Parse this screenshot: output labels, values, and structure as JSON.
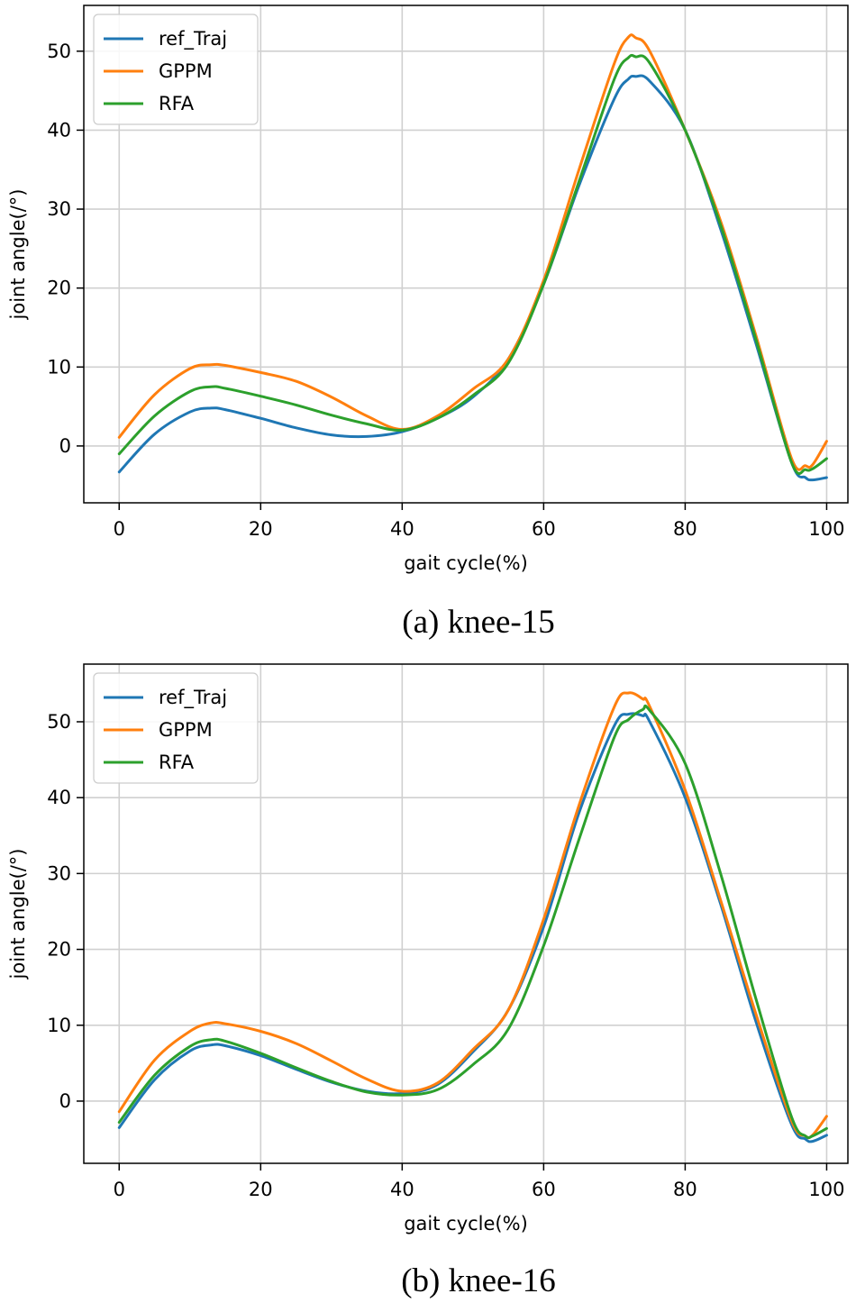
{
  "figure": {
    "colors": {
      "ref_Traj": "#1f77b4",
      "GPPM": "#ff7f0e",
      "RFA": "#2ca02c",
      "grid": "#d0d0d0",
      "axes": "#000000"
    }
  },
  "chart_data": [
    {
      "type": "line",
      "caption": "(a) knee-15",
      "xlabel": "gait cycle(%)",
      "ylabel": "joint angle(/°)",
      "xlim": [
        -5,
        103
      ],
      "ylim": [
        -7.2,
        55.8
      ],
      "xticks": [
        0,
        20,
        40,
        60,
        80,
        100
      ],
      "yticks": [
        0,
        10,
        20,
        30,
        40,
        50
      ],
      "grid": true,
      "legend_position": "upper-left",
      "x": [
        0,
        5,
        10,
        13,
        15,
        20,
        25,
        30,
        35,
        40,
        45,
        50,
        55,
        60,
        65,
        70,
        72,
        73,
        75,
        80,
        85,
        90,
        95,
        97,
        98,
        100
      ],
      "series": [
        {
          "name": "ref_Traj",
          "values": [
            -3.3,
            1.5,
            4.3,
            4.8,
            4.6,
            3.5,
            2.3,
            1.4,
            1.2,
            1.8,
            3.5,
            6.2,
            11,
            20.5,
            33,
            44,
            46.5,
            46.8,
            46.2,
            40,
            27.5,
            13,
            -2,
            -4,
            -4.3,
            -4
          ]
        },
        {
          "name": "GPPM",
          "values": [
            1.1,
            6.5,
            9.8,
            10.3,
            10.2,
            9.3,
            8.2,
            6.2,
            3.8,
            2.1,
            3.8,
            7.2,
            11,
            21,
            35,
            48.5,
            51.8,
            51.7,
            50,
            40,
            28.5,
            14,
            -1.5,
            -2.5,
            -2.4,
            0.6
          ]
        },
        {
          "name": "RFA",
          "values": [
            -1,
            3.8,
            6.9,
            7.5,
            7.3,
            6.3,
            5.2,
            3.9,
            2.8,
            2,
            3.5,
            6.4,
            10.5,
            20.5,
            33.5,
            46.5,
            49.2,
            49.3,
            48.5,
            40,
            28,
            13.5,
            -2,
            -3,
            -2.9,
            -1.6
          ]
        }
      ]
    },
    {
      "type": "line",
      "caption": "(b) knee-16",
      "xlabel": "gait cycle(%)",
      "ylabel": "joint angle(/°)",
      "xlim": [
        -5,
        103
      ],
      "ylim": [
        -8.2,
        57.6
      ],
      "xticks": [
        0,
        20,
        40,
        60,
        80,
        100
      ],
      "yticks": [
        0,
        10,
        20,
        30,
        40,
        50
      ],
      "grid": true,
      "legend_position": "upper-left",
      "x": [
        0,
        5,
        10,
        13,
        15,
        20,
        25,
        30,
        35,
        40,
        45,
        50,
        55,
        60,
        65,
        70,
        72,
        74,
        75,
        80,
        85,
        90,
        95,
        97,
        98,
        100
      ],
      "series": [
        {
          "name": "ref_Traj",
          "values": [
            -3.5,
            2.8,
            6.6,
            7.4,
            7.3,
            6,
            4.2,
            2.5,
            1.3,
            1,
            2.2,
            6.5,
            12,
            23,
            38,
            49.5,
            51,
            50.8,
            50,
            40,
            26,
            10.5,
            -3,
            -5,
            -5.3,
            -4.5
          ]
        },
        {
          "name": "GPPM",
          "values": [
            -1.4,
            5.4,
            9.2,
            10.3,
            10.2,
            9.2,
            7.6,
            5.3,
            2.9,
            1.3,
            2.4,
            6.8,
            12,
            24,
            39,
            52,
            53.8,
            53,
            52,
            41,
            26.5,
            11.5,
            -2.5,
            -4.6,
            -4.5,
            -2
          ]
        },
        {
          "name": "RFA",
          "values": [
            -2.8,
            3.4,
            7.2,
            8.1,
            7.9,
            6.3,
            4.4,
            2.6,
            1.2,
            0.8,
            1.5,
            4.8,
            9.5,
            20.5,
            34.5,
            48,
            50.3,
            51.6,
            51.5,
            44.5,
            30,
            13.5,
            -2,
            -4.6,
            -4.6,
            -3.6
          ]
        }
      ]
    }
  ]
}
